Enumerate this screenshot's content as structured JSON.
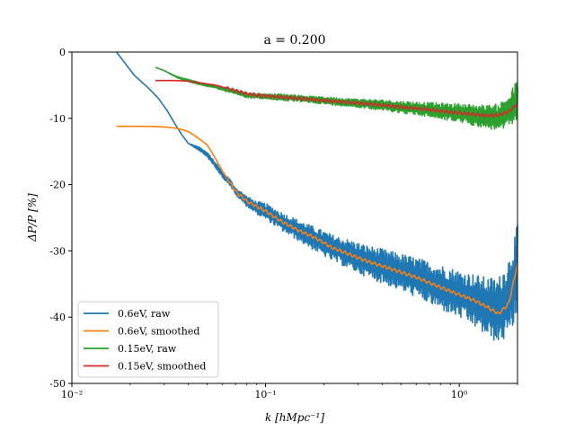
{
  "chart_data": {
    "type": "line",
    "title": "a = 0.200",
    "xlabel": "k [hMpc⁻¹]",
    "ylabel": "ΔP/P [%]",
    "xscale": "log",
    "xlim": [
      0.01,
      2.0
    ],
    "ylim": [
      -50,
      0
    ],
    "xticks": [
      {
        "value": 0.01,
        "label": "10⁻²"
      },
      {
        "value": 0.1,
        "label": "10⁻¹"
      },
      {
        "value": 1.0,
        "label": "10⁰"
      }
    ],
    "yticks": [
      {
        "value": 0,
        "label": "0"
      },
      {
        "value": -10,
        "label": "-10"
      },
      {
        "value": -20,
        "label": "-20"
      },
      {
        "value": -30,
        "label": "-30"
      },
      {
        "value": -40,
        "label": "-40"
      },
      {
        "value": -50,
        "label": "-50"
      }
    ],
    "grid": false,
    "legend_position": "lower-left",
    "series": [
      {
        "name": "0.6eV, raw",
        "color": "#1f77b4",
        "noisy": true,
        "x": [
          0.017,
          0.021,
          0.025,
          0.028,
          0.031,
          0.034,
          0.037,
          0.04,
          0.045,
          0.05,
          0.055,
          0.06,
          0.065,
          0.07,
          0.08,
          0.09,
          0.1,
          0.12,
          0.15,
          0.18,
          0.22,
          0.27,
          0.33,
          0.4,
          0.5,
          0.6,
          0.7,
          0.8,
          1.0,
          1.2,
          1.4,
          1.6,
          1.8,
          2.0
        ],
        "y": [
          0.0,
          -3.5,
          -5.5,
          -7.0,
          -8.8,
          -10.8,
          -12.5,
          -13.8,
          -14.5,
          -15.5,
          -17.0,
          -18.5,
          -19.5,
          -21.0,
          -22.5,
          -23.5,
          -24.0,
          -25.5,
          -27.0,
          -28.2,
          -29.5,
          -30.5,
          -31.5,
          -32.3,
          -33.2,
          -34.0,
          -34.8,
          -35.5,
          -36.5,
          -37.5,
          -38.5,
          -39.0,
          -37.0,
          -33.0
        ],
        "noise": [
          0,
          0,
          0,
          0,
          0,
          0,
          0,
          0,
          0.3,
          0.4,
          0.4,
          0.5,
          0.5,
          0.6,
          0.8,
          1.0,
          1.2,
          1.4,
          1.6,
          1.8,
          2.0,
          2.2,
          2.4,
          2.6,
          2.8,
          3.0,
          3.2,
          3.4,
          3.6,
          4.0,
          4.5,
          5.0,
          6.0,
          7.0
        ]
      },
      {
        "name": "0.6eV, smoothed",
        "color": "#ff7f0e",
        "noisy": false,
        "x": [
          0.017,
          0.02,
          0.025,
          0.03,
          0.035,
          0.04,
          0.045,
          0.05,
          0.055,
          0.06,
          0.065,
          0.07,
          0.08,
          0.09,
          0.1,
          0.12,
          0.15,
          0.18,
          0.22,
          0.27,
          0.33,
          0.4,
          0.5,
          0.6,
          0.7,
          0.8,
          1.0,
          1.2,
          1.4,
          1.6,
          1.8,
          2.0
        ],
        "y": [
          -11.2,
          -11.2,
          -11.2,
          -11.3,
          -11.5,
          -12.0,
          -13.0,
          -14.0,
          -16.0,
          -18.0,
          -19.5,
          -21.0,
          -22.5,
          -23.3,
          -24.0,
          -25.5,
          -27.0,
          -28.0,
          -29.5,
          -30.5,
          -31.5,
          -32.3,
          -33.2,
          -34.0,
          -34.8,
          -35.5,
          -36.6,
          -37.5,
          -38.5,
          -39.5,
          -38.0,
          -32.0
        ]
      },
      {
        "name": "0.15eV, raw",
        "color": "#2ca02c",
        "noisy": true,
        "x": [
          0.027,
          0.03,
          0.035,
          0.04,
          0.045,
          0.05,
          0.055,
          0.06,
          0.07,
          0.08,
          0.09,
          0.1,
          0.12,
          0.15,
          0.18,
          0.22,
          0.27,
          0.33,
          0.4,
          0.5,
          0.6,
          0.7,
          0.8,
          1.0,
          1.2,
          1.4,
          1.6,
          1.8,
          2.0
        ],
        "y": [
          -2.3,
          -2.8,
          -3.8,
          -4.3,
          -4.7,
          -5.0,
          -5.2,
          -5.5,
          -6.0,
          -6.5,
          -6.6,
          -6.7,
          -6.8,
          -7.0,
          -7.2,
          -7.4,
          -7.6,
          -7.8,
          -8.0,
          -8.3,
          -8.5,
          -8.7,
          -8.9,
          -9.2,
          -9.5,
          -9.8,
          -9.8,
          -9.0,
          -7.0
        ],
        "noise": [
          0,
          0,
          0.1,
          0.2,
          0.2,
          0.2,
          0.3,
          0.3,
          0.3,
          0.4,
          0.4,
          0.4,
          0.5,
          0.5,
          0.5,
          0.6,
          0.6,
          0.7,
          0.8,
          0.9,
          1.0,
          1.1,
          1.2,
          1.4,
          1.6,
          1.8,
          2.0,
          2.5,
          3.0
        ]
      },
      {
        "name": "0.15eV, smoothed",
        "color": "#d62728",
        "noisy": false,
        "x": [
          0.027,
          0.03,
          0.035,
          0.04,
          0.045,
          0.05,
          0.055,
          0.06,
          0.07,
          0.08,
          0.09,
          0.1,
          0.12,
          0.15,
          0.18,
          0.22,
          0.27,
          0.33,
          0.4,
          0.5,
          0.6,
          0.7,
          0.8,
          1.0,
          1.2,
          1.4,
          1.6,
          1.8,
          2.0
        ],
        "y": [
          -4.3,
          -4.3,
          -4.3,
          -4.4,
          -4.6,
          -4.8,
          -5.0,
          -5.3,
          -5.8,
          -6.3,
          -6.5,
          -6.6,
          -6.8,
          -7.0,
          -7.2,
          -7.4,
          -7.6,
          -7.8,
          -8.0,
          -8.3,
          -8.5,
          -8.7,
          -8.9,
          -9.2,
          -9.4,
          -9.6,
          -9.5,
          -9.0,
          -7.8
        ]
      }
    ]
  }
}
